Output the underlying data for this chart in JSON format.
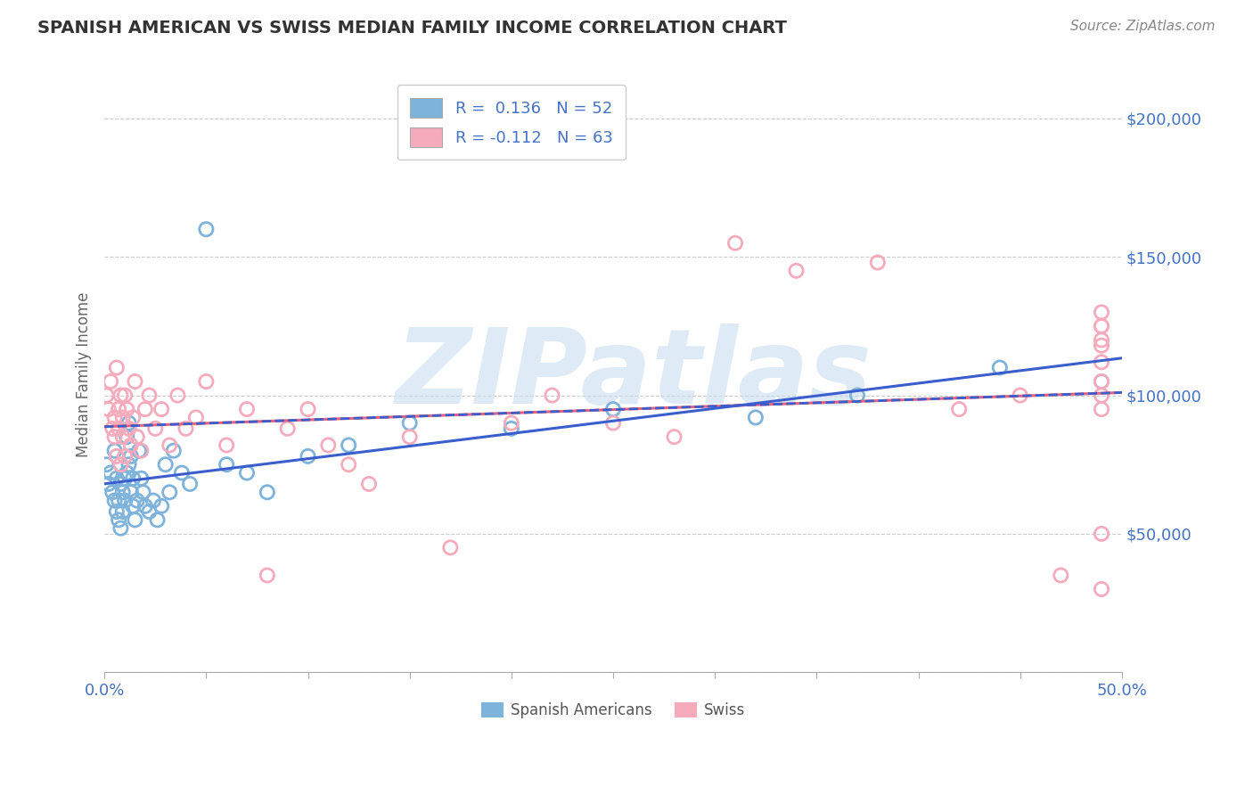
{
  "title": "SPANISH AMERICAN VS SWISS MEDIAN FAMILY INCOME CORRELATION CHART",
  "source": "Source: ZipAtlas.com",
  "ylabel": "Median Family Income",
  "yticks": [
    0,
    50000,
    100000,
    150000,
    200000
  ],
  "ytick_labels": [
    "",
    "$50,000",
    "$100,000",
    "$150,000",
    "$200,000"
  ],
  "xticks": [
    0.0,
    0.05,
    0.1,
    0.15,
    0.2,
    0.25,
    0.3,
    0.35,
    0.4,
    0.45,
    0.5
  ],
  "xlim": [
    0.0,
    0.5
  ],
  "ylim": [
    0,
    215000
  ],
  "r_blue": 0.136,
  "n_blue": 52,
  "r_pink": -0.112,
  "n_pink": 63,
  "legend_labels": [
    "Spanish Americans",
    "Swiss"
  ],
  "blue_color": "#7EB3DC",
  "pink_color": "#F5ABBC",
  "trend_blue_color": "#3A5FCD",
  "trend_pink_color": "#E8607A",
  "watermark": "ZIPatlas",
  "watermark_color": "#C8DCF0",
  "blue_scatter_x": [
    0.001,
    0.002,
    0.003,
    0.004,
    0.005,
    0.005,
    0.006,
    0.006,
    0.007,
    0.007,
    0.008,
    0.008,
    0.009,
    0.009,
    0.01,
    0.01,
    0.011,
    0.011,
    0.012,
    0.012,
    0.013,
    0.013,
    0.014,
    0.014,
    0.015,
    0.016,
    0.017,
    0.018,
    0.019,
    0.02,
    0.022,
    0.024,
    0.026,
    0.028,
    0.03,
    0.032,
    0.034,
    0.038,
    0.042,
    0.05,
    0.06,
    0.07,
    0.08,
    0.1,
    0.12,
    0.15,
    0.2,
    0.25,
    0.32,
    0.37,
    0.44,
    0.49
  ],
  "blue_scatter_y": [
    75000,
    68000,
    72000,
    65000,
    80000,
    62000,
    70000,
    58000,
    62000,
    55000,
    68000,
    52000,
    65000,
    58000,
    70000,
    62000,
    85000,
    72000,
    90000,
    75000,
    65000,
    78000,
    70000,
    60000,
    55000,
    62000,
    80000,
    70000,
    65000,
    60000,
    58000,
    62000,
    55000,
    60000,
    75000,
    65000,
    80000,
    72000,
    68000,
    160000,
    75000,
    72000,
    65000,
    78000,
    82000,
    90000,
    88000,
    95000,
    92000,
    100000,
    110000,
    105000
  ],
  "pink_scatter_x": [
    0.001,
    0.002,
    0.003,
    0.004,
    0.005,
    0.005,
    0.006,
    0.006,
    0.007,
    0.007,
    0.008,
    0.008,
    0.009,
    0.009,
    0.01,
    0.01,
    0.011,
    0.012,
    0.013,
    0.014,
    0.015,
    0.016,
    0.018,
    0.02,
    0.022,
    0.025,
    0.028,
    0.032,
    0.036,
    0.04,
    0.045,
    0.05,
    0.06,
    0.07,
    0.08,
    0.09,
    0.1,
    0.11,
    0.12,
    0.13,
    0.15,
    0.17,
    0.2,
    0.22,
    0.25,
    0.28,
    0.31,
    0.34,
    0.38,
    0.42,
    0.45,
    0.47,
    0.49,
    0.49,
    0.49,
    0.49,
    0.49,
    0.49,
    0.49,
    0.49,
    0.49,
    0.49,
    0.49
  ],
  "pink_scatter_y": [
    100000,
    95000,
    105000,
    88000,
    92000,
    85000,
    78000,
    110000,
    95000,
    88000,
    100000,
    75000,
    92000,
    85000,
    100000,
    78000,
    95000,
    88000,
    82000,
    92000,
    105000,
    85000,
    80000,
    95000,
    100000,
    88000,
    95000,
    82000,
    100000,
    88000,
    92000,
    105000,
    82000,
    95000,
    35000,
    88000,
    95000,
    82000,
    75000,
    68000,
    85000,
    45000,
    90000,
    100000,
    90000,
    85000,
    155000,
    145000,
    148000,
    95000,
    100000,
    35000,
    30000,
    125000,
    100000,
    118000,
    112000,
    105000,
    130000,
    120000,
    125000,
    95000,
    50000
  ]
}
